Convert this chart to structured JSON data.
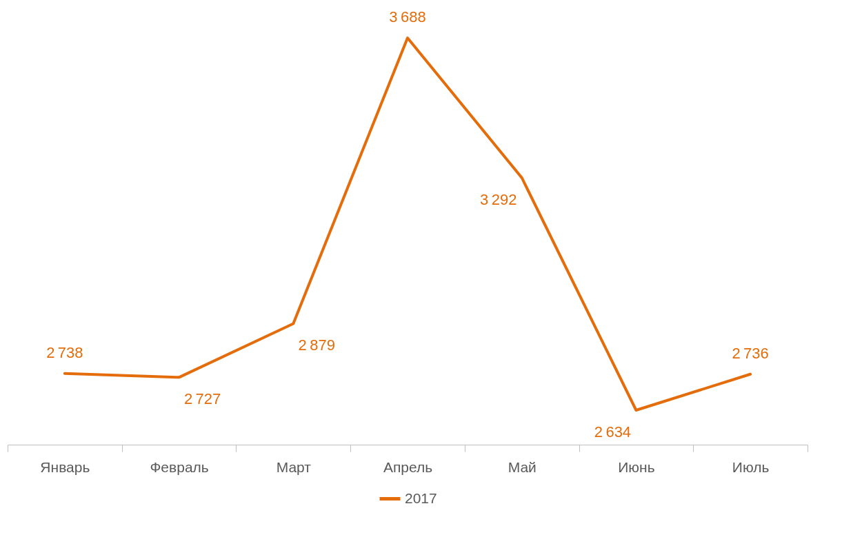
{
  "chart_data": {
    "type": "line",
    "categories": [
      "Январь",
      "Февраль",
      "Март",
      "Апрель",
      "Май",
      "Июнь",
      "Июль"
    ],
    "series": [
      {
        "name": "2017",
        "color": "#e46c0a",
        "values": [
          2738,
          2727,
          2879,
          3688,
          3292,
          2634,
          2736
        ]
      }
    ],
    "data_labels": true,
    "legend": "bottom"
  }
}
